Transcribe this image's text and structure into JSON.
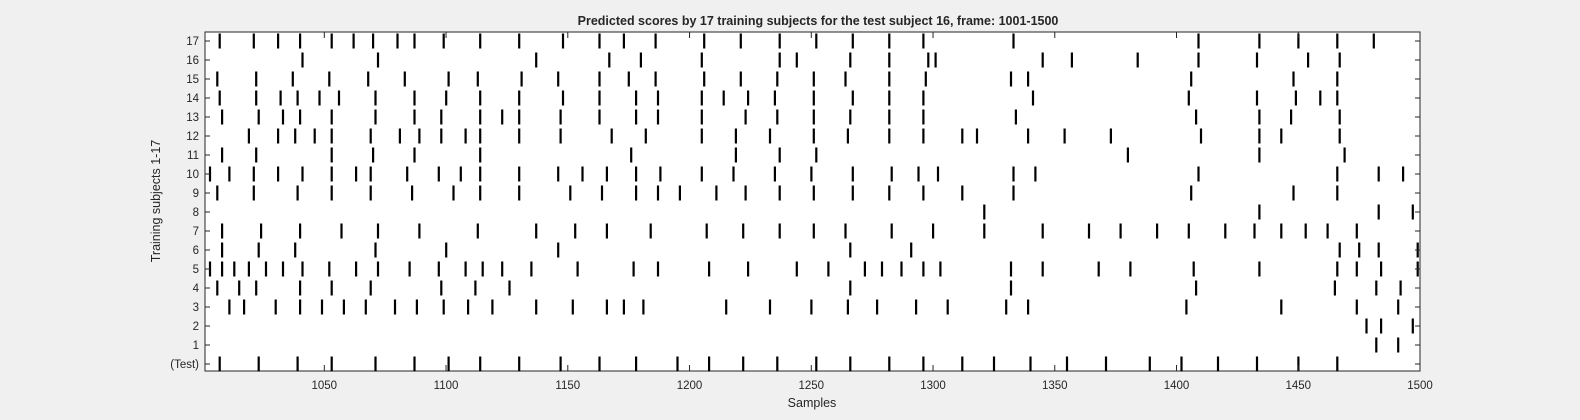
{
  "chart_data": {
    "type": "event-raster",
    "title": "Predicted scores by 17 training subjects for the test subject 16, frame: 1001-1500",
    "xlabel": "Samples",
    "ylabel": "Training subjects 1-17",
    "xlim": [
      1001,
      1500
    ],
    "xticks": [
      1050,
      1100,
      1150,
      1200,
      1250,
      1300,
      1350,
      1400,
      1450,
      1500
    ],
    "row_labels": [
      "(Test)",
      "1",
      "2",
      "3",
      "4",
      "5",
      "6",
      "7",
      "8",
      "9",
      "10",
      "11",
      "12",
      "13",
      "14",
      "15",
      "16",
      "17"
    ],
    "grid": false,
    "colors": {
      "background": "#f0f0f0",
      "plot": "#ffffff",
      "mark": "#000000",
      "text": "#262626"
    },
    "rows": [
      {
        "row": "(Test)",
        "events": [
          1007,
          1023,
          1039,
          1053,
          1071,
          1087,
          1101,
          1114,
          1130,
          1147,
          1163,
          1178,
          1195,
          1208,
          1222,
          1236,
          1252,
          1266,
          1282,
          1296,
          1312,
          1325,
          1340,
          1355,
          1371,
          1389,
          1402,
          1417,
          1433,
          1450,
          1466
        ]
      },
      {
        "row": "1",
        "events": [
          1482,
          1491
        ]
      },
      {
        "row": "2",
        "events": [
          1478,
          1484,
          1497
        ]
      },
      {
        "row": "3",
        "events": [
          1011,
          1017,
          1030,
          1040,
          1049,
          1058,
          1067,
          1079,
          1088,
          1099,
          1109,
          1119,
          1137,
          1152,
          1166,
          1173,
          1181,
          1215,
          1233,
          1250,
          1265,
          1277,
          1293,
          1306,
          1330,
          1339,
          1404,
          1443,
          1474,
          1491
        ]
      },
      {
        "row": "4",
        "events": [
          1006,
          1015,
          1022,
          1040,
          1053,
          1069,
          1098,
          1112,
          1126,
          1266,
          1332,
          1408,
          1465,
          1482,
          1492
        ]
      },
      {
        "row": "5",
        "events": [
          1003,
          1008,
          1013,
          1019,
          1026,
          1033,
          1041,
          1052,
          1063,
          1072,
          1085,
          1097,
          1108,
          1115,
          1123,
          1135,
          1154,
          1177,
          1187,
          1208,
          1224,
          1244,
          1257,
          1272,
          1279,
          1287,
          1296,
          1303,
          1332,
          1345,
          1368,
          1381,
          1407,
          1434,
          1466,
          1474,
          1484,
          1499
        ]
      },
      {
        "row": "6",
        "events": [
          1008,
          1023,
          1038,
          1071,
          1100,
          1146,
          1266,
          1291,
          1467,
          1475,
          1483,
          1499
        ]
      },
      {
        "row": "7",
        "events": [
          1008,
          1024,
          1040,
          1057,
          1072,
          1089,
          1113,
          1137,
          1153,
          1166,
          1184,
          1207,
          1222,
          1237,
          1251,
          1264,
          1283,
          1300,
          1321,
          1345,
          1364,
          1377,
          1392,
          1405,
          1420,
          1432,
          1443,
          1453,
          1462,
          1474
        ]
      },
      {
        "row": "8",
        "events": [
          1321,
          1434,
          1483,
          1497
        ]
      },
      {
        "row": "9",
        "events": [
          1006,
          1021,
          1039,
          1053,
          1069,
          1086,
          1103,
          1114,
          1130,
          1151,
          1164,
          1178,
          1187,
          1196,
          1211,
          1223,
          1237,
          1251,
          1267,
          1282,
          1296,
          1312,
          1333,
          1406,
          1448,
          1466
        ]
      },
      {
        "row": "10",
        "events": [
          1003,
          1011,
          1021,
          1031,
          1041,
          1053,
          1063,
          1069,
          1084,
          1097,
          1106,
          1114,
          1130,
          1146,
          1156,
          1166,
          1178,
          1188,
          1205,
          1218,
          1235,
          1250,
          1267,
          1283,
          1294,
          1302,
          1333,
          1342,
          1409,
          1466,
          1483,
          1493
        ]
      },
      {
        "row": "11",
        "events": [
          1008,
          1022,
          1053,
          1070,
          1087,
          1114,
          1176,
          1219,
          1237,
          1252,
          1380,
          1434,
          1469
        ]
      },
      {
        "row": "12",
        "events": [
          1019,
          1031,
          1038,
          1046,
          1053,
          1069,
          1081,
          1089,
          1098,
          1108,
          1114,
          1130,
          1147,
          1168,
          1182,
          1205,
          1219,
          1233,
          1251,
          1265,
          1282,
          1296,
          1312,
          1318,
          1339,
          1354,
          1373,
          1410,
          1434,
          1443,
          1467
        ]
      },
      {
        "row": "13",
        "events": [
          1008,
          1023,
          1033,
          1040,
          1053,
          1071,
          1087,
          1098,
          1114,
          1123,
          1130,
          1147,
          1163,
          1178,
          1187,
          1205,
          1223,
          1236,
          1251,
          1266,
          1282,
          1296,
          1334,
          1408,
          1434,
          1447,
          1467
        ]
      },
      {
        "row": "14",
        "events": [
          1007,
          1022,
          1032,
          1039,
          1048,
          1056,
          1071,
          1087,
          1100,
          1114,
          1130,
          1148,
          1163,
          1178,
          1187,
          1205,
          1214,
          1224,
          1235,
          1251,
          1267,
          1282,
          1296,
          1341,
          1405,
          1433,
          1449,
          1459,
          1466
        ]
      },
      {
        "row": "15",
        "events": [
          1006,
          1022,
          1037,
          1052,
          1068,
          1083,
          1101,
          1113,
          1131,
          1146,
          1163,
          1175,
          1186,
          1206,
          1221,
          1236,
          1251,
          1264,
          1282,
          1297,
          1332,
          1339,
          1406,
          1448,
          1466
        ]
      },
      {
        "row": "16",
        "events": [
          1041,
          1072,
          1137,
          1167,
          1180,
          1205,
          1237,
          1244,
          1266,
          1282,
          1298,
          1301,
          1345,
          1357,
          1384,
          1409,
          1433,
          1454,
          1467
        ]
      },
      {
        "row": "17",
        "events": [
          1007,
          1021,
          1031,
          1040,
          1053,
          1062,
          1070,
          1080,
          1087,
          1099,
          1114,
          1130,
          1148,
          1163,
          1173,
          1186,
          1206,
          1221,
          1237,
          1252,
          1267,
          1282,
          1296,
          1333,
          1409,
          1434,
          1450,
          1466,
          1481
        ]
      }
    ]
  }
}
